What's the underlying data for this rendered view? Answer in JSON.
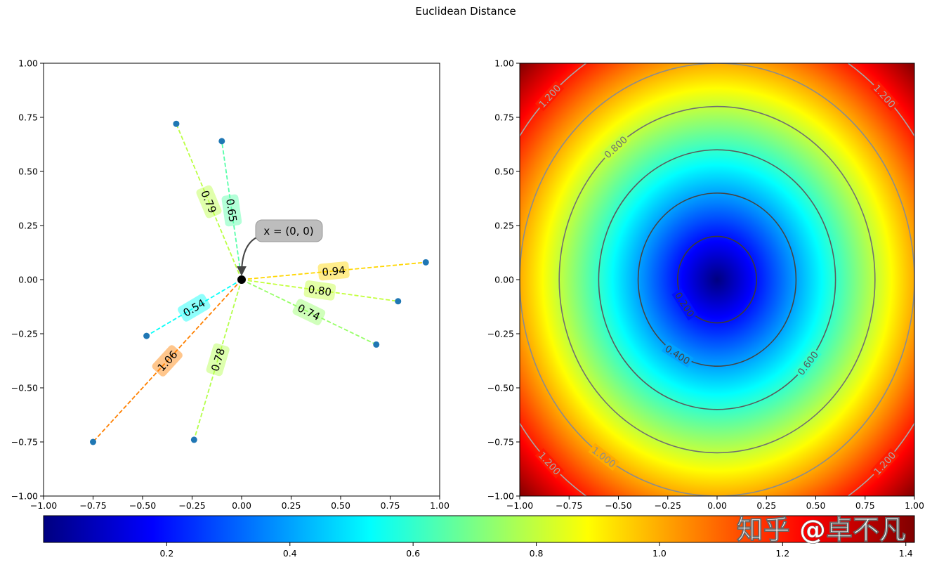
{
  "title": "Euclidean Distance",
  "watermark": "知乎 @卓不凡",
  "chart_data": [
    {
      "type": "scatter",
      "title": "",
      "xlim": [
        -1,
        1
      ],
      "ylim": [
        -1,
        1
      ],
      "xticks": [
        "−1.00",
        "−0.75",
        "−0.50",
        "−0.25",
        "0.00",
        "0.25",
        "0.50",
        "0.75",
        "1.00"
      ],
      "yticks": [
        "−1.00",
        "−0.75",
        "−0.50",
        "−0.25",
        "0.00",
        "0.25",
        "0.50",
        "0.75",
        "1.00"
      ],
      "origin": {
        "x": 0,
        "y": 0,
        "label": "x = (0, 0)"
      },
      "points": [
        {
          "x": -0.33,
          "y": 0.72,
          "d": 0.79,
          "label": "0.79"
        },
        {
          "x": -0.1,
          "y": 0.64,
          "d": 0.65,
          "label": "0.65"
        },
        {
          "x": 0.93,
          "y": 0.08,
          "d": 0.94,
          "label": "0.94"
        },
        {
          "x": 0.79,
          "y": -0.1,
          "d": 0.8,
          "label": "0.80"
        },
        {
          "x": 0.68,
          "y": -0.3,
          "d": 0.74,
          "label": "0.74"
        },
        {
          "x": -0.48,
          "y": -0.26,
          "d": 0.54,
          "label": "0.54"
        },
        {
          "x": -0.75,
          "y": -0.75,
          "d": 1.06,
          "label": "1.06"
        },
        {
          "x": -0.24,
          "y": -0.74,
          "d": 0.78,
          "label": "0.78"
        }
      ],
      "point_color": "#1f77b4",
      "colormap": "jet",
      "color_range": [
        0,
        1.414
      ]
    },
    {
      "type": "heatmap",
      "title": "",
      "xlim": [
        -1,
        1
      ],
      "ylim": [
        -1,
        1
      ],
      "xticks": [
        "−1.00",
        "−0.75",
        "−0.50",
        "−0.25",
        "0.00",
        "0.25",
        "0.50",
        "0.75",
        "1.00"
      ],
      "yticks": [
        "−1.00",
        "−0.75",
        "−0.50",
        "−0.25",
        "0.00",
        "0.25",
        "0.50",
        "0.75",
        "1.00"
      ],
      "function": "sqrt(x^2 + y^2)",
      "contour_levels": [
        0.2,
        0.4,
        0.6,
        0.8,
        1.0,
        1.2
      ],
      "contour_labels": [
        "0.200",
        "0.400",
        "0.600",
        "0.800",
        "1.000",
        "1.200"
      ],
      "colormap": "jet"
    },
    {
      "type": "colorbar",
      "range": [
        0,
        1.414
      ],
      "ticks": [
        0.2,
        0.4,
        0.6,
        0.8,
        1.0,
        1.2,
        1.4
      ],
      "tick_labels": [
        "0.2",
        "0.4",
        "0.6",
        "0.8",
        "1.0",
        "1.2",
        "1.4"
      ],
      "colormap": "jet"
    }
  ]
}
